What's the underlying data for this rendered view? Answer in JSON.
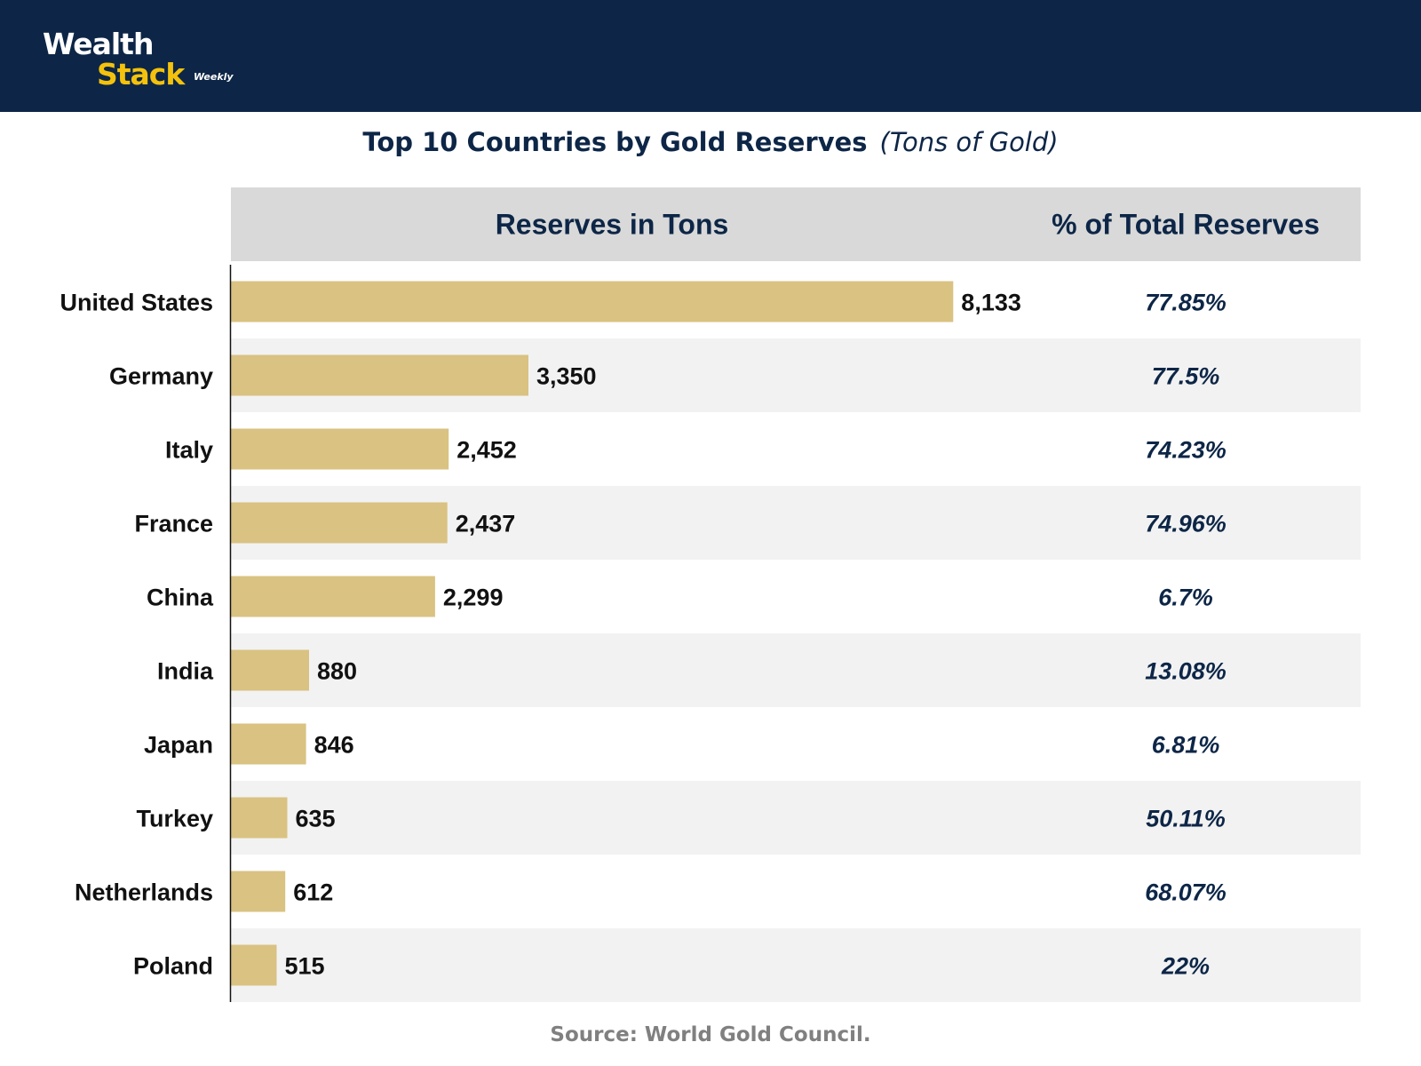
{
  "brand": {
    "line1": "Wealth",
    "line2": "Stack",
    "line3": "Weekly",
    "colors": {
      "navy": "#0d2647",
      "yellow": "#f4c20d"
    }
  },
  "title": {
    "main": "Top 10 Countries by Gold Reserves",
    "sub": "(Tons of Gold)"
  },
  "table_headers": {
    "reserves": "Reserves in Tons",
    "percent": "% of Total Reserves"
  },
  "source": "Source: World Gold Council.",
  "chart_data": {
    "type": "bar",
    "orientation": "horizontal",
    "title": "Top 10 Countries by Gold Reserves",
    "subtitle": "(Tons of Gold)",
    "categories": [
      "United States",
      "Germany",
      "Italy",
      "France",
      "China",
      "India",
      "Japan",
      "Turkey",
      "Netherlands",
      "Poland"
    ],
    "values": [
      8133,
      3350,
      2452,
      2437,
      2299,
      880,
      846,
      635,
      612,
      515
    ],
    "value_labels": [
      "8,133",
      "3,350",
      "2,452",
      "2,437",
      "2,299",
      "880",
      "846",
      "635",
      "612",
      "515"
    ],
    "percent_of_total": [
      "77.85%",
      "77.5%",
      "74.23%",
      "74.96%",
      "6.7%",
      "13.08%",
      "6.81%",
      "50.11%",
      "68.07%",
      "22%"
    ],
    "xlabel": "Reserves in Tons",
    "ylabel": "",
    "xlim": [
      0,
      8800
    ],
    "bar_color": "#d9c282",
    "alt_row_color": "#f2f2f2",
    "header_bg": "#d9d9d9",
    "grid": false
  }
}
